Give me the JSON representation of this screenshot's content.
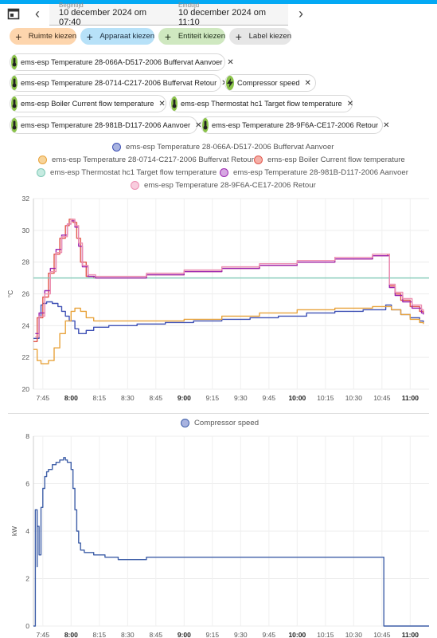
{
  "header": {
    "start_label": "Begintijd",
    "start_value": "10 december 2024 om 07:40",
    "end_label": "Eindtijd",
    "end_value": "10 december 2024 om 11:10"
  },
  "pickers": [
    {
      "label": "Ruimte kiezen",
      "color": "#fdd5ad",
      "textColor": "#3a2a1a"
    },
    {
      "label": "Apparaat kiezen",
      "color": "#b7e1f8",
      "textColor": "#1a2a3a"
    },
    {
      "label": "Entiteit kiezen",
      "color": "#cfe8c0",
      "textColor": "#1f2f1a"
    },
    {
      "label": "Label kiezen",
      "color": "#e6e6e6",
      "textColor": "#2a2a2a"
    }
  ],
  "entities": [
    "ems-esp Temperature 28-066A-D517-2006 Buffervat Aanvoer",
    "ems-esp Temperature 28-0714-C217-2006 Buffervat Retour",
    "Compressor speed",
    "ems-esp Boiler Current flow temperature",
    "ems-esp Thermostat hc1 Target flow temperature",
    "ems-esp Temperature 28-981B-D117-2006 Aanvoer",
    "ems-esp Temperature 28-9F6A-CE17-2006 Retour"
  ],
  "chart_data": [
    {
      "type": "line",
      "ylabel": "°C",
      "ylim": [
        20,
        32
      ],
      "yticks": [
        20,
        22,
        24,
        26,
        28,
        30,
        32
      ],
      "xlim": [
        "7:40",
        "11:10"
      ],
      "xticks": [
        "7:45",
        "8:00",
        "8:15",
        "8:30",
        "8:45",
        "9:00",
        "9:15",
        "9:30",
        "9:45",
        "10:00",
        "10:15",
        "10:30",
        "10:45",
        "11:00"
      ],
      "bold_xticks": [
        "8:00",
        "9:00",
        "10:00",
        "11:00"
      ],
      "legend_position": "top-center",
      "series": [
        {
          "name": "ems-esp Temperature 28-066A-D517-2006 Buffervat Aanvoer",
          "color": "#3f51b5",
          "fill": "#a8b3e0",
          "x": [
            "7:40",
            "7:43",
            "7:44",
            "7:45",
            "7:47",
            "7:50",
            "7:53",
            "7:55",
            "7:57",
            "7:59",
            "8:02",
            "8:04",
            "8:06",
            "8:08",
            "8:12",
            "8:20",
            "8:35",
            "8:50",
            "9:05",
            "9:20",
            "9:35",
            "9:50",
            "10:05",
            "10:20",
            "10:35",
            "10:45",
            "10:47",
            "10:50",
            "10:55",
            "11:00",
            "11:05",
            "11:07"
          ],
          "y": [
            23.2,
            24.6,
            25.3,
            25.4,
            25.5,
            25.4,
            25.2,
            24.9,
            24.6,
            24.3,
            23.8,
            23.5,
            23.5,
            23.7,
            23.9,
            24.0,
            24.1,
            24.2,
            24.3,
            24.4,
            24.5,
            24.6,
            24.8,
            24.9,
            25.0,
            25.0,
            25.3,
            25.0,
            24.7,
            24.5,
            24.3,
            24.2
          ]
        },
        {
          "name": "ems-esp Temperature 28-0714-C217-2006 Buffervat Retour",
          "color": "#e8a33c",
          "fill": "#f7d49a",
          "x": [
            "7:40",
            "7:42",
            "7:44",
            "7:46",
            "7:48",
            "7:51",
            "7:54",
            "7:57",
            "8:00",
            "8:02",
            "8:05",
            "8:08",
            "8:12",
            "8:20",
            "8:40",
            "9:00",
            "9:20",
            "9:40",
            "10:00",
            "10:20",
            "10:40",
            "10:45",
            "10:50",
            "10:55",
            "11:00",
            "11:05",
            "11:07"
          ],
          "y": [
            22.5,
            21.8,
            21.6,
            21.6,
            21.8,
            22.6,
            23.5,
            24.3,
            24.9,
            25.1,
            24.9,
            24.5,
            24.3,
            24.3,
            24.3,
            24.4,
            24.6,
            24.8,
            25.0,
            25.1,
            25.2,
            25.2,
            25.0,
            24.7,
            24.4,
            24.2,
            24.1
          ]
        },
        {
          "name": "ems-esp Boiler Current flow temperature",
          "color": "#e2574c",
          "fill": "#f4b0a8",
          "x": [
            "7:40",
            "7:42",
            "7:45",
            "7:48",
            "7:51",
            "7:54",
            "7:57",
            "7:59",
            "8:01",
            "8:03",
            "8:05",
            "8:08",
            "8:12",
            "8:20",
            "8:40",
            "9:00",
            "9:20",
            "9:40",
            "10:00",
            "10:20",
            "10:40",
            "10:48",
            "10:49",
            "10:52",
            "10:55",
            "11:00",
            "11:05",
            "11:07"
          ],
          "y": [
            23.0,
            24.5,
            25.8,
            27.3,
            28.5,
            29.5,
            30.3,
            30.7,
            30.5,
            29.5,
            28.0,
            27.1,
            27.0,
            27.0,
            27.2,
            27.4,
            27.6,
            27.8,
            28.0,
            28.2,
            28.4,
            28.5,
            26.5,
            26.0,
            25.6,
            25.2,
            24.9,
            24.8
          ]
        },
        {
          "name": "ems-esp Thermostat hc1 Target flow temperature",
          "color": "#7fc8b6",
          "fill": "#c6ebe1",
          "x": [
            "7:40",
            "11:10"
          ],
          "y": [
            27.0,
            27.0
          ]
        },
        {
          "name": "ems-esp Temperature 28-981B-D117-2006 Aanvoer",
          "color": "#9c27b0",
          "fill": "#d6a7e2",
          "x": [
            "7:41",
            "7:43",
            "7:46",
            "7:49",
            "7:52",
            "7:55",
            "7:58",
            "8:00",
            "8:02",
            "8:04",
            "8:06",
            "8:09",
            "8:13",
            "8:20",
            "8:40",
            "9:00",
            "9:20",
            "9:40",
            "10:00",
            "10:20",
            "10:40",
            "10:48",
            "10:49",
            "10:52",
            "10:56",
            "11:01",
            "11:06",
            "11:07"
          ],
          "y": [
            23.5,
            24.8,
            26.2,
            27.6,
            28.8,
            29.7,
            30.4,
            30.6,
            30.2,
            29.0,
            27.7,
            27.1,
            27.0,
            27.0,
            27.2,
            27.4,
            27.6,
            27.8,
            28.0,
            28.2,
            28.4,
            28.4,
            26.4,
            25.9,
            25.5,
            25.1,
            24.8,
            24.7
          ]
        },
        {
          "name": "ems-esp Temperature 28-9F6A-CE17-2006 Retour",
          "color": "#ec8fb1",
          "fill": "#f8cdde",
          "x": [
            "7:41",
            "7:43",
            "7:46",
            "7:49",
            "7:52",
            "7:55",
            "7:58",
            "8:00",
            "8:02",
            "8:04",
            "8:06",
            "8:09",
            "8:13",
            "8:20",
            "8:40",
            "9:00",
            "9:20",
            "9:40",
            "10:00",
            "10:20",
            "10:40",
            "10:48",
            "10:49",
            "10:52",
            "10:56",
            "11:01",
            "11:06",
            "11:07"
          ],
          "y": [
            23.3,
            24.6,
            26.0,
            27.4,
            28.6,
            29.6,
            30.4,
            30.7,
            30.3,
            29.2,
            27.8,
            27.2,
            27.1,
            27.1,
            27.3,
            27.5,
            27.7,
            27.9,
            28.1,
            28.3,
            28.5,
            28.5,
            26.6,
            26.1,
            25.7,
            25.3,
            25.0,
            24.9
          ]
        }
      ]
    },
    {
      "type": "line",
      "ylabel": "kW",
      "ylim": [
        0,
        8
      ],
      "yticks": [
        0,
        2,
        4,
        6,
        8
      ],
      "xlim": [
        "7:40",
        "11:10"
      ],
      "xticks": [
        "7:45",
        "8:00",
        "8:15",
        "8:30",
        "8:45",
        "9:00",
        "9:15",
        "9:30",
        "9:45",
        "10:00",
        "10:15",
        "10:30",
        "10:45",
        "11:00"
      ],
      "bold_xticks": [
        "8:00",
        "9:00",
        "10:00",
        "11:00"
      ],
      "legend_position": "top-center",
      "series": [
        {
          "name": "Compressor speed",
          "color": "#3f5fa8",
          "fill": "#a8b3e0",
          "x": [
            "7:40",
            "7:41",
            "7:41",
            "7:42",
            "7:42",
            "7:43",
            "7:44",
            "7:45",
            "7:46",
            "7:47",
            "7:48",
            "7:50",
            "7:52",
            "7:54",
            "7:56",
            "7:57",
            "7:58",
            "8:00",
            "8:01",
            "8:02",
            "8:03",
            "8:04",
            "8:05",
            "8:06",
            "8:07",
            "8:09",
            "8:12",
            "8:18",
            "8:25",
            "8:32",
            "8:40",
            "9:00",
            "9:30",
            "10:00",
            "10:30",
            "10:45",
            "10:46",
            "11:10"
          ],
          "y": [
            0,
            0,
            4.9,
            2.5,
            4.2,
            3.0,
            5.0,
            5.8,
            6.3,
            6.5,
            6.6,
            6.8,
            6.9,
            7.0,
            7.1,
            7.0,
            6.9,
            6.6,
            5.8,
            4.9,
            4.0,
            3.5,
            3.2,
            3.2,
            3.1,
            3.1,
            3.0,
            2.9,
            2.8,
            2.8,
            2.9,
            2.9,
            2.9,
            2.9,
            2.9,
            2.9,
            0,
            0
          ]
        }
      ]
    }
  ]
}
